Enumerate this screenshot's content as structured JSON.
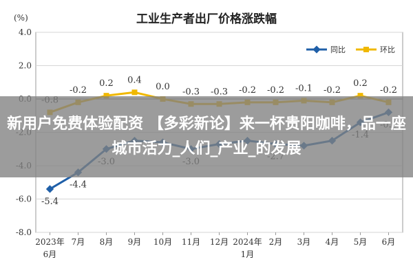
{
  "page_title": "工业生产者出厂价格涨跌幅",
  "unit_label": "(%)",
  "overlay": {
    "headline": "新用户免费体验配资 【多彩新论】来一杯贵阳咖啡，品一座城市活力_人们_产业_的发展"
  },
  "chart_data": {
    "type": "line",
    "title": "工业生产者出厂价格涨跌幅",
    "ylabel": "(%)",
    "ylim": [
      -8.0,
      4.0
    ],
    "yticks": [
      "4.0",
      "2.0",
      "0.0",
      "-2.0",
      "-4.0",
      "-6.0",
      "-8.0"
    ],
    "categories": [
      [
        "2023年",
        "6月"
      ],
      [
        "7月"
      ],
      [
        "8月"
      ],
      [
        "9月"
      ],
      [
        "10月"
      ],
      [
        "11月"
      ],
      [
        "12月"
      ],
      [
        "2024年",
        "1月"
      ],
      [
        "2月"
      ],
      [
        "3月"
      ],
      [
        "4月"
      ],
      [
        "5月"
      ],
      [
        "6月"
      ]
    ],
    "series": [
      {
        "name": "同比",
        "color": "#1f5fa8",
        "values": [
          -5.4,
          -4.4,
          -3.0,
          -2.5,
          -2.6,
          -3.0,
          -2.7,
          -2.5,
          -2.7,
          -2.8,
          -2.5,
          -1.4,
          -0.8
        ],
        "labels": [
          "-5.4",
          "-4.4",
          "-3.0",
          "",
          "",
          "-3.0",
          "",
          "",
          "-2.7",
          "",
          "",
          "-1.4",
          "-0.8"
        ]
      },
      {
        "name": "环比",
        "color": "#f0b800",
        "values": [
          -0.8,
          -0.2,
          0.2,
          0.4,
          0.0,
          -0.3,
          -0.3,
          -0.2,
          -0.2,
          -0.1,
          -0.2,
          0.2,
          -0.2
        ],
        "labels": [
          "-0.8",
          "-0.2",
          "0.2",
          "0.4",
          "0.0",
          "-0.3",
          "-0.3",
          "-0.2",
          "-0.2",
          "-0.1",
          "-0.2",
          "0.2",
          "-0.2"
        ]
      }
    ],
    "grid": true,
    "legend": "top-right"
  }
}
